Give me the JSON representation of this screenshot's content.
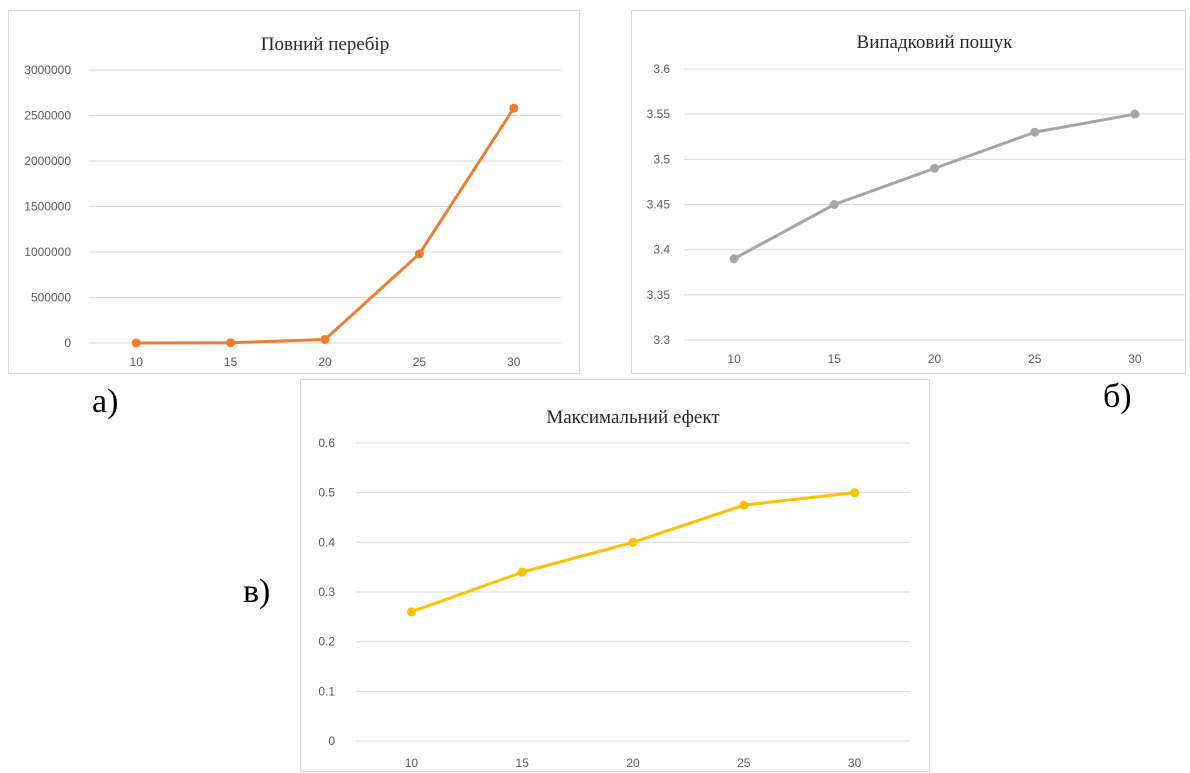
{
  "chart_data": [
    {
      "type": "line",
      "title": "Повний перебір",
      "categories": [
        "10",
        "15",
        "20",
        "25",
        "30"
      ],
      "series": [
        {
          "values": [
            184,
            3003,
            38760,
            980000,
            2580000
          ]
        }
      ],
      "yticks": [
        "0",
        "500000",
        "1000000",
        "1500000",
        "2000000",
        "2500000",
        "3000000"
      ],
      "ylim": [
        0,
        3000000
      ],
      "grid": true,
      "legend": "none",
      "color": "#ED7D31",
      "panel_label": "а)"
    },
    {
      "type": "line",
      "title": "Випадковий пошук",
      "categories": [
        "10",
        "15",
        "20",
        "25",
        "30"
      ],
      "series": [
        {
          "values": [
            3.39,
            3.45,
            3.49,
            3.53,
            3.55
          ]
        }
      ],
      "yticks": [
        "3.3",
        "3.35",
        "3.4",
        "3.45",
        "3.5",
        "3.55",
        "3.6"
      ],
      "ylim": [
        3.3,
        3.6
      ],
      "grid": true,
      "legend": "none",
      "color": "#A5A5A5",
      "panel_label": "б)"
    },
    {
      "type": "line",
      "title": "Максимальний ефект",
      "categories": [
        "10",
        "15",
        "20",
        "25",
        "30"
      ],
      "series": [
        {
          "values": [
            0.26,
            0.34,
            0.4,
            0.475,
            0.5
          ]
        }
      ],
      "yticks": [
        "0",
        "0.1",
        "0.2",
        "0.3",
        "0.4",
        "0.5",
        "0.6"
      ],
      "ylim": [
        0,
        0.6
      ],
      "grid": true,
      "legend": "none",
      "color": "#FFC000",
      "panel_label": "в)"
    }
  ]
}
